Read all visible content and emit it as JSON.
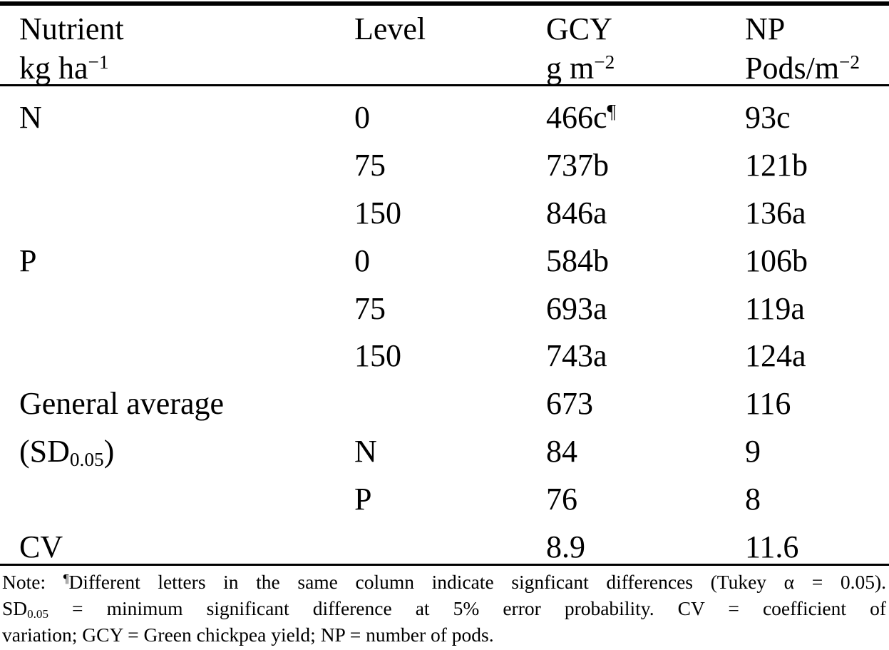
{
  "colors": {
    "text": "#000000",
    "background": "#ffffff",
    "rule": "#000000"
  },
  "table": {
    "header": {
      "columns": [
        {
          "line1": [
            {
              "text": "Nutrient"
            }
          ],
          "line2": [
            {
              "text": "kg ha"
            },
            {
              "text": "−1",
              "style": "sup"
            }
          ]
        },
        {
          "line1": [
            {
              "text": "Level"
            }
          ],
          "line2": []
        },
        {
          "line1": [
            {
              "text": "GCY"
            }
          ],
          "line2": [
            {
              "text": "g m"
            },
            {
              "text": "−2",
              "style": "sup"
            }
          ]
        },
        {
          "line1": [
            {
              "text": "NP"
            }
          ],
          "line2": [
            {
              "text": "Pods/m"
            },
            {
              "text": "−2",
              "style": "sup"
            }
          ]
        }
      ]
    },
    "rows": [
      [
        [
          {
            "text": "N"
          }
        ],
        [
          {
            "text": "0"
          }
        ],
        [
          {
            "text": "466c"
          },
          {
            "text": "¶",
            "style": "sup"
          }
        ],
        [
          {
            "text": "93c"
          }
        ]
      ],
      [
        [],
        [
          {
            "text": "75"
          }
        ],
        [
          {
            "text": "737b"
          }
        ],
        [
          {
            "text": "121b"
          }
        ]
      ],
      [
        [],
        [
          {
            "text": "150"
          }
        ],
        [
          {
            "text": "846a"
          }
        ],
        [
          {
            "text": "136a"
          }
        ]
      ],
      [
        [
          {
            "text": "P"
          }
        ],
        [
          {
            "text": "0"
          }
        ],
        [
          {
            "text": "584b"
          }
        ],
        [
          {
            "text": "106b"
          }
        ]
      ],
      [
        [],
        [
          {
            "text": "75"
          }
        ],
        [
          {
            "text": "693a"
          }
        ],
        [
          {
            "text": "119a"
          }
        ]
      ],
      [
        [],
        [
          {
            "text": "150"
          }
        ],
        [
          {
            "text": "743a"
          }
        ],
        [
          {
            "text": "124a"
          }
        ]
      ],
      [
        [
          {
            "text": "General average"
          }
        ],
        [],
        [
          {
            "text": "673"
          }
        ],
        [
          {
            "text": "116"
          }
        ]
      ],
      [
        [
          {
            "text": "(SD"
          },
          {
            "text": "0.05",
            "style": "sub"
          },
          {
            "text": ")"
          }
        ],
        [
          {
            "text": "N"
          }
        ],
        [
          {
            "text": "84"
          }
        ],
        [
          {
            "text": "9"
          }
        ]
      ],
      [
        [],
        [
          {
            "text": "P"
          }
        ],
        [
          {
            "text": "76"
          }
        ],
        [
          {
            "text": "8"
          }
        ]
      ],
      [
        [
          {
            "text": "CV"
          }
        ],
        [],
        [
          {
            "text": "8.9"
          }
        ],
        [
          {
            "text": "11.6"
          }
        ]
      ]
    ]
  },
  "note": {
    "lines": [
      {
        "justify": true,
        "segments": [
          {
            "text": "Note: "
          },
          {
            "text": "¶",
            "style": "sup"
          },
          {
            "text": "Different letters in the same column indicate signficant differences (Tukey α = 0.05)."
          }
        ]
      },
      {
        "justify": true,
        "segments": [
          {
            "text": "SD"
          },
          {
            "text": "0.05",
            "style": "sub"
          },
          {
            "text": " = minimum significant difference at 5% error probability. CV = coefficient of"
          }
        ]
      },
      {
        "justify": false,
        "segments": [
          {
            "text": "variation; GCY = Green chickpea yield; NP = number of pods."
          }
        ]
      }
    ]
  }
}
